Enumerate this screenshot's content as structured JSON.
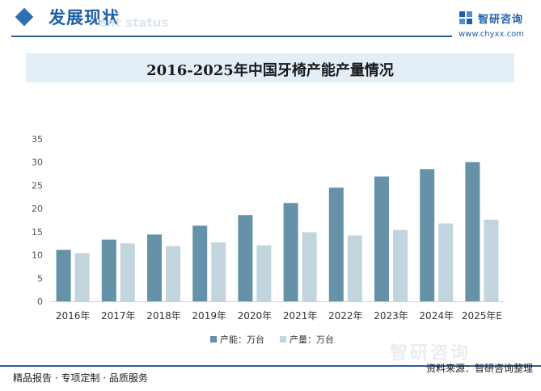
{
  "header": {
    "section_title": "发展现状",
    "section_subtitle": "ent status"
  },
  "brand": {
    "name": "智研咨询",
    "url": "www.chyxx.com",
    "color": "#1f5fa6"
  },
  "footer": {
    "left": "精品报告 · 专项定制 · 品质服务",
    "source": "资料来源：智研咨询整理"
  },
  "chart_data": {
    "type": "bar",
    "title": "2016-2025年中国牙椅产能产量情况",
    "categories": [
      "2016年",
      "2017年",
      "2018年",
      "2019年",
      "2020年",
      "2021年",
      "2022年",
      "2023年",
      "2024年",
      "2025年E"
    ],
    "series": [
      {
        "name": "产能：万台",
        "color": "#6592a8",
        "values": [
          11.1,
          13.3,
          14.4,
          16.3,
          18.6,
          21.2,
          24.5,
          26.9,
          28.5,
          30.0
        ]
      },
      {
        "name": "产量：万台",
        "color": "#c2d5df",
        "values": [
          10.4,
          12.5,
          11.9,
          12.7,
          12.1,
          14.9,
          14.2,
          15.4,
          16.8,
          17.6
        ]
      }
    ],
    "ylim": [
      0,
      35
    ],
    "yticks": [
      0,
      5,
      10,
      15,
      20,
      25,
      30,
      35
    ],
    "grid": false,
    "legend_position": "bottom"
  }
}
